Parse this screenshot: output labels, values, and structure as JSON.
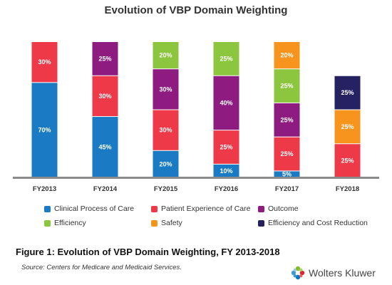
{
  "chart_data": {
    "type": "bar",
    "stacked": true,
    "title": "Evolution of VBP Domain Weighting",
    "categories": [
      "FY2013",
      "FY2014",
      "FY2015",
      "FY2016",
      "FY2017",
      "FY2018"
    ],
    "ylim": [
      0,
      100
    ],
    "series": [
      {
        "name": "Clinical Process of Care",
        "color": "#1a7bc4",
        "values": [
          70,
          45,
          20,
          10,
          5,
          0
        ]
      },
      {
        "name": "Patient Experience of Care",
        "color": "#ee3a48",
        "values": [
          30,
          30,
          30,
          25,
          25,
          25
        ]
      },
      {
        "name": "Outcome",
        "color": "#8e1c80",
        "values": [
          0,
          25,
          30,
          40,
          25,
          0
        ]
      },
      {
        "name": "Efficiency",
        "color": "#8cc63f",
        "values": [
          0,
          0,
          20,
          25,
          25,
          0
        ]
      },
      {
        "name": "Safety",
        "color": "#f7941d",
        "values": [
          0,
          0,
          0,
          0,
          20,
          25
        ]
      },
      {
        "name": "Efficiency and Cost Reduction",
        "color": "#262262",
        "values": [
          0,
          0,
          0,
          0,
          0,
          25
        ]
      }
    ],
    "series_order": {
      "FY2013": [
        "Clinical Process of Care",
        "Patient Experience of Care"
      ],
      "FY2014": [
        "Clinical Process of Care",
        "Patient Experience of Care",
        "Outcome"
      ],
      "FY2015": [
        "Clinical Process of Care",
        "Patient Experience of Care",
        "Outcome",
        "Efficiency"
      ],
      "FY2016": [
        "Clinical Process of Care",
        "Patient Experience of Care",
        "Outcome",
        "Efficiency"
      ],
      "FY2017": [
        "Clinical Process of Care",
        "Patient Experience of Care",
        "Outcome",
        "Efficiency",
        "Safety"
      ],
      "FY2018": [
        "Clinical Process of Care",
        "Patient Experience of Care",
        "Safety",
        "Efficiency and Cost Reduction"
      ]
    },
    "legend_position": "bottom",
    "grid": false
  },
  "caption": "Figure 1: Evolution of VBP Domain Weighting, FY 2013-2018",
  "source": "Source:  Centers for Medicare and Medicaid Services.",
  "brand": {
    "name": "Wolters Kluwer",
    "icon": "wolters-kluwer-logo"
  }
}
